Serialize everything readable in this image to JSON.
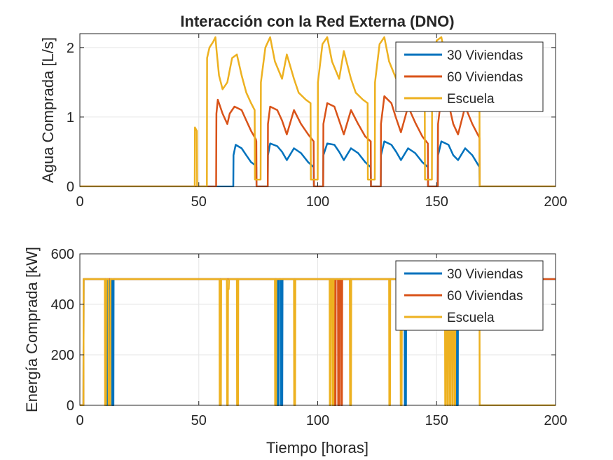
{
  "colors": {
    "series1": "#0072BD",
    "series2": "#D95319",
    "series3": "#EDB120",
    "grid": "#E6E6E6",
    "axis": "#262626"
  },
  "chart_data": [
    {
      "type": "line",
      "title": "Interacción con la Red Externa (DNO)",
      "xlabel": "",
      "ylabel": "Agua Comprada [L/s]",
      "xlim": [
        0,
        200
      ],
      "ylim": [
        0,
        2.2
      ],
      "xticks": [
        0,
        50,
        100,
        150,
        200
      ],
      "yticks": [
        0,
        1,
        2
      ],
      "xtick_labels": [
        "0",
        "50",
        "100",
        "150",
        "200"
      ],
      "ytick_labels": [
        "0",
        "1",
        "2"
      ],
      "grid": true,
      "legend_position": "top-right",
      "series": [
        {
          "name": "30 Viviendas",
          "color": "#0072BD",
          "x": [
            0,
            64.5,
            64.6,
            65.5,
            68,
            70,
            72,
            74,
            74.2,
            74.3,
            79,
            79.1,
            80,
            83,
            85,
            87,
            90,
            93,
            96,
            98.3,
            98.4,
            102.3,
            102.4,
            104,
            107,
            109,
            111,
            114,
            117,
            120,
            122.3,
            122.4,
            126.5,
            126.6,
            128,
            131,
            133,
            135,
            138,
            141,
            144,
            146.3,
            146.4,
            150.5,
            150.6,
            152,
            155,
            157,
            159,
            162,
            165,
            168,
            168.1,
            200
          ],
          "y": [
            0,
            0,
            0.45,
            0.6,
            0.55,
            0.45,
            0.35,
            0.3,
            0.28,
            0,
            0,
            0.45,
            0.62,
            0.58,
            0.5,
            0.38,
            0.55,
            0.48,
            0.35,
            0.28,
            0,
            0,
            0.45,
            0.62,
            0.6,
            0.5,
            0.38,
            0.55,
            0.48,
            0.35,
            0.28,
            0,
            0,
            0.45,
            0.65,
            0.6,
            0.5,
            0.38,
            0.55,
            0.48,
            0.35,
            0.28,
            0,
            0,
            0.45,
            0.65,
            0.6,
            0.45,
            0.38,
            0.55,
            0.45,
            0.28,
            0,
            0
          ]
        },
        {
          "name": "60 Viviendas",
          "color": "#D95319",
          "x": [
            0,
            57.3,
            57.4,
            58,
            60,
            62,
            63,
            65,
            68,
            70,
            72,
            74,
            74.2,
            74.3,
            79,
            79.1,
            80,
            83,
            85,
            87,
            90,
            93,
            96,
            98.3,
            98.4,
            102.3,
            102.4,
            104,
            107,
            109,
            111,
            114,
            117,
            120,
            122.3,
            122.4,
            126.5,
            126.6,
            128,
            131,
            133,
            135,
            138,
            141,
            144,
            146.3,
            146.4,
            150.5,
            150.6,
            152,
            155,
            157,
            159,
            162,
            165,
            168,
            168.1,
            200
          ],
          "y": [
            0,
            0,
            1.05,
            1.25,
            1.05,
            0.9,
            1.05,
            1.15,
            1.1,
            0.95,
            0.8,
            0.68,
            0.65,
            0,
            0,
            0.9,
            1.15,
            1.1,
            0.95,
            0.75,
            1.1,
            0.9,
            0.75,
            0.65,
            0,
            0,
            0.9,
            1.2,
            1.15,
            0.95,
            0.75,
            1.1,
            0.9,
            0.72,
            0.65,
            0,
            0,
            0.9,
            1.3,
            1.2,
            0.98,
            0.78,
            1.15,
            0.92,
            0.72,
            0.62,
            0,
            0,
            0.9,
            1.3,
            1.2,
            0.9,
            0.75,
            1.15,
            0.9,
            0.7,
            0,
            0
          ]
        },
        {
          "name": "Escuela",
          "color": "#EDB120",
          "x": [
            0,
            48.3,
            48.4,
            49.2,
            49.3,
            49.4,
            53.4,
            53.5,
            54.5,
            56,
            57,
            57.5,
            58.5,
            60,
            62,
            64,
            66,
            68,
            70,
            72,
            73.5,
            73.6,
            76,
            76.1,
            78,
            80,
            82,
            85,
            87,
            90,
            92,
            95,
            97,
            97.1,
            100,
            100.1,
            102,
            104,
            106,
            109,
            111,
            114,
            116,
            119,
            121,
            121.1,
            124,
            124.1,
            126,
            128,
            130,
            133,
            135,
            138,
            140,
            143,
            145,
            145.1,
            148,
            148.1,
            150,
            152,
            154,
            157,
            159,
            162,
            164,
            167,
            168,
            168.1,
            200
          ],
          "y": [
            0,
            0,
            0.85,
            0.8,
            0,
            0,
            0,
            1.85,
            2.0,
            2.08,
            2.15,
            1.95,
            1.6,
            1.4,
            1.5,
            1.85,
            1.9,
            1.6,
            1.35,
            1.2,
            1.1,
            0.1,
            0.1,
            1.5,
            2.0,
            2.15,
            1.8,
            1.55,
            1.9,
            1.55,
            1.35,
            1.25,
            1.2,
            0.1,
            0.1,
            1.5,
            2.05,
            2.15,
            1.8,
            1.55,
            1.95,
            1.55,
            1.35,
            1.25,
            1.2,
            0.1,
            0.1,
            1.5,
            2.05,
            2.15,
            1.8,
            1.55,
            2.0,
            1.55,
            1.35,
            1.25,
            1.2,
            0.1,
            0.1,
            1.5,
            2.1,
            2.15,
            1.8,
            1.55,
            1.9,
            1.55,
            1.35,
            1.15,
            1.15,
            0,
            0
          ]
        }
      ]
    },
    {
      "type": "line",
      "title": "",
      "xlabel": "Tiempo [horas]",
      "ylabel": "Energía Comprada [kW]",
      "xlim": [
        0,
        200
      ],
      "ylim": [
        0,
        600
      ],
      "xticks": [
        0,
        50,
        100,
        150,
        200
      ],
      "yticks": [
        0,
        200,
        400,
        600
      ],
      "xtick_labels": [
        "0",
        "50",
        "100",
        "150",
        "200"
      ],
      "ytick_labels": [
        "0",
        "200",
        "400",
        "600"
      ],
      "grid": true,
      "legend_position": "top-right",
      "series": [
        {
          "name": "30 Viviendas",
          "color": "#0072BD",
          "x": [
            0,
            1.5,
            1.6,
            10.8,
            10.9,
            11.2,
            11.3,
            11.8,
            11.9,
            12.2,
            12.3,
            13.5,
            13.6,
            14.1,
            14.2,
            83,
            83.1,
            83.6,
            83.7,
            84.5,
            84.6,
            85.1,
            85.2,
            136.5,
            136.6,
            137.1,
            137.2,
            158.3,
            158.4,
            158.9,
            159,
            200
          ],
          "y": [
            0,
            0,
            500,
            500,
            0,
            0,
            500,
            500,
            0,
            0,
            500,
            500,
            0,
            0,
            500,
            500,
            0,
            0,
            500,
            500,
            0,
            0,
            500,
            500,
            0,
            0,
            500,
            500,
            0,
            0,
            500,
            500
          ]
        },
        {
          "name": "60 Viviendas",
          "color": "#D95319",
          "x": [
            0,
            1.5,
            1.6,
            107,
            107.1,
            107.5,
            107.6,
            108.5,
            108.6,
            109,
            109.1,
            109.8,
            109.9,
            110.2,
            110.3,
            200
          ],
          "y": [
            0,
            0,
            500,
            500,
            0,
            0,
            500,
            500,
            0,
            0,
            500,
            500,
            0,
            0,
            500,
            500
          ]
        },
        {
          "name": "Escuela",
          "color": "#EDB120",
          "x": [
            0,
            1.5,
            1.6,
            10.5,
            10.6,
            11,
            11.1,
            12,
            12.1,
            12.8,
            12.9,
            58.7,
            58.8,
            59.3,
            59.4,
            61.8,
            61.9,
            62.2,
            62.3,
            62.6,
            62.7,
            63,
            63.1,
            66,
            66.1,
            66.5,
            66.6,
            82,
            82.1,
            82.5,
            82.6,
            90,
            90.1,
            90.5,
            90.6,
            105,
            105.1,
            105.4,
            105.5,
            106.2,
            106.3,
            106.6,
            106.7,
            113.5,
            113.6,
            114,
            114.1,
            130,
            130.1,
            130.4,
            130.5,
            134.8,
            134.9,
            135.3,
            135.4,
            153.5,
            153.6,
            153.8,
            153.9,
            154.5,
            154.6,
            154.8,
            154.9,
            155.5,
            155.6,
            155.8,
            155.9,
            156.5,
            156.6,
            156.8,
            156.9,
            157.5,
            157.6,
            157.8,
            157.9,
            168,
            168.1,
            200
          ],
          "y": [
            0,
            0,
            500,
            500,
            0,
            0,
            500,
            500,
            0,
            0,
            500,
            500,
            0,
            0,
            500,
            500,
            0,
            0,
            460,
            460,
            500,
            500,
            500,
            500,
            0,
            0,
            500,
            500,
            0,
            0,
            500,
            500,
            0,
            0,
            500,
            500,
            0,
            0,
            500,
            500,
            0,
            0,
            500,
            500,
            0,
            0,
            500,
            500,
            0,
            0,
            500,
            500,
            0,
            0,
            500,
            500,
            0,
            0,
            500,
            500,
            0,
            0,
            500,
            500,
            0,
            0,
            500,
            500,
            0,
            0,
            500,
            500,
            0,
            0,
            500,
            500,
            0,
            0
          ]
        }
      ]
    }
  ]
}
